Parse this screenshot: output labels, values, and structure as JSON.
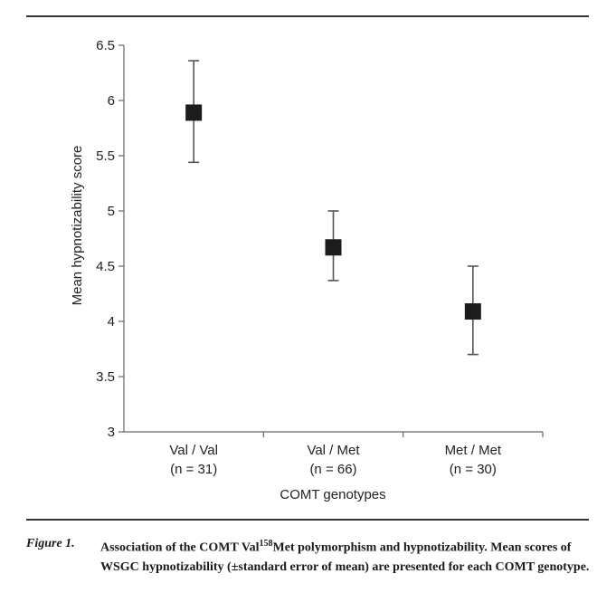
{
  "chart_data": {
    "type": "scatter",
    "categories": [
      "Val / Val",
      "Val / Met",
      "Met / Met"
    ],
    "category_n": [
      "(n = 31)",
      "(n = 66)",
      "(n = 30)"
    ],
    "values": [
      5.89,
      4.67,
      4.09
    ],
    "error_upper": [
      6.36,
      5.0,
      4.5
    ],
    "error_lower": [
      5.44,
      4.37,
      3.7
    ],
    "ylabel": "Mean hypnotizability score",
    "xlabel": "COMT genotypes",
    "ylim": [
      3,
      6.5
    ],
    "yticks": [
      "3",
      "3.5",
      "4",
      "4.5",
      "5",
      "5.5",
      "6",
      "6.5"
    ],
    "grid": false,
    "marker": "square",
    "colors": {
      "marker": "#1c1c1c",
      "error_bar": "#555555",
      "axis": "#666666"
    }
  },
  "caption": {
    "label": "Figure 1.",
    "text_part1": "Association of the COMT Val",
    "superscript": "158",
    "text_part2": "Met polymorphism and hypnotizability. Mean scores of WSGC hypnotizability (±standard error of mean) are presented for each COMT genotype."
  }
}
